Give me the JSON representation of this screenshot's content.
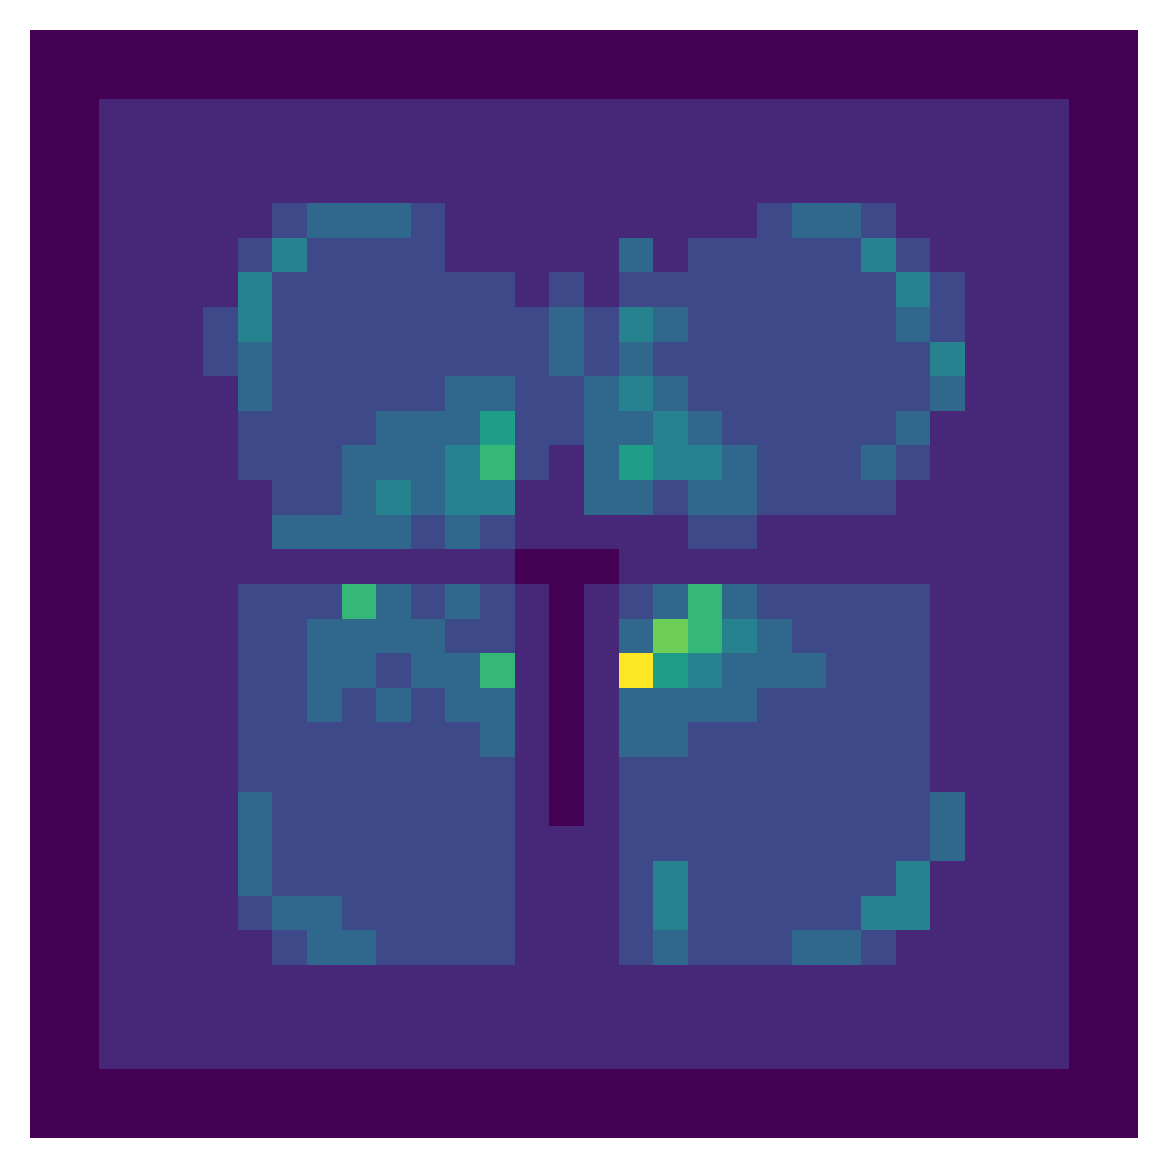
{
  "chart_data": {
    "type": "heatmap",
    "color": "viridis",
    "tick_labels": false,
    "color_range": [
      0,
      9
    ],
    "cells": [
      [
        0,
        0,
        0,
        0,
        0,
        0,
        0,
        0,
        0,
        0,
        0,
        0,
        0,
        0,
        0,
        0,
        0,
        0,
        0,
        0,
        0,
        0,
        0,
        0,
        0,
        0,
        0,
        0,
        0,
        0,
        0,
        0
      ],
      [
        0,
        0,
        0,
        0,
        0,
        0,
        0,
        0,
        0,
        0,
        0,
        0,
        0,
        0,
        0,
        0,
        0,
        0,
        0,
        0,
        0,
        0,
        0,
        0,
        0,
        0,
        0,
        0,
        0,
        0,
        0,
        0
      ],
      [
        0,
        0,
        1,
        1,
        1,
        1,
        1,
        1,
        1,
        1,
        1,
        1,
        1,
        1,
        1,
        1,
        1,
        1,
        1,
        1,
        1,
        1,
        1,
        1,
        1,
        1,
        1,
        1,
        1,
        1,
        0,
        0
      ],
      [
        0,
        0,
        1,
        1,
        1,
        1,
        1,
        1,
        1,
        1,
        1,
        1,
        1,
        1,
        1,
        1,
        1,
        1,
        1,
        1,
        1,
        1,
        1,
        1,
        1,
        1,
        1,
        1,
        1,
        1,
        0,
        0
      ],
      [
        0,
        0,
        1,
        1,
        1,
        1,
        1,
        1,
        1,
        1,
        1,
        1,
        1,
        1,
        1,
        1,
        1,
        1,
        1,
        1,
        1,
        1,
        1,
        1,
        1,
        1,
        1,
        1,
        1,
        1,
        0,
        0
      ],
      [
        0,
        0,
        1,
        1,
        1,
        1,
        1,
        2,
        3,
        3,
        3,
        2,
        1,
        1,
        1,
        1,
        1,
        1,
        1,
        1,
        1,
        2,
        3,
        3,
        2,
        1,
        1,
        1,
        1,
        1,
        0,
        0
      ],
      [
        0,
        0,
        1,
        1,
        1,
        1,
        2,
        4,
        2,
        2,
        2,
        2,
        1,
        1,
        1,
        1,
        1,
        3,
        1,
        2,
        2,
        2,
        2,
        2,
        4,
        2,
        1,
        1,
        1,
        1,
        0,
        0
      ],
      [
        0,
        0,
        1,
        1,
        1,
        1,
        4,
        2,
        2,
        2,
        2,
        2,
        2,
        2,
        1,
        2,
        1,
        2,
        2,
        2,
        2,
        2,
        2,
        2,
        2,
        4,
        2,
        1,
        1,
        1,
        0,
        0
      ],
      [
        0,
        0,
        1,
        1,
        1,
        2,
        4,
        2,
        2,
        2,
        2,
        2,
        2,
        2,
        2,
        3,
        2,
        4,
        3,
        2,
        2,
        2,
        2,
        2,
        2,
        3,
        2,
        1,
        1,
        1,
        0,
        0
      ],
      [
        0,
        0,
        1,
        1,
        1,
        2,
        3,
        2,
        2,
        2,
        2,
        2,
        2,
        2,
        2,
        3,
        2,
        3,
        2,
        2,
        2,
        2,
        2,
        2,
        2,
        2,
        4,
        1,
        1,
        1,
        0,
        0
      ],
      [
        0,
        0,
        1,
        1,
        1,
        1,
        3,
        2,
        2,
        2,
        2,
        2,
        3,
        3,
        2,
        2,
        3,
        4,
        3,
        2,
        2,
        2,
        2,
        2,
        2,
        2,
        3,
        1,
        1,
        1,
        0,
        0
      ],
      [
        0,
        0,
        1,
        1,
        1,
        1,
        2,
        2,
        2,
        2,
        3,
        3,
        3,
        5,
        2,
        2,
        3,
        3,
        4,
        3,
        2,
        2,
        2,
        2,
        2,
        3,
        1,
        1,
        1,
        1,
        0,
        0
      ],
      [
        0,
        0,
        1,
        1,
        1,
        1,
        2,
        2,
        2,
        3,
        3,
        3,
        4,
        6,
        2,
        1,
        3,
        5,
        4,
        4,
        3,
        2,
        2,
        2,
        3,
        2,
        1,
        1,
        1,
        1,
        0,
        0
      ],
      [
        0,
        0,
        1,
        1,
        1,
        1,
        1,
        2,
        2,
        3,
        4,
        3,
        4,
        4,
        1,
        1,
        3,
        3,
        2,
        3,
        3,
        2,
        2,
        2,
        2,
        1,
        1,
        1,
        1,
        1,
        0,
        0
      ],
      [
        0,
        0,
        1,
        1,
        1,
        1,
        1,
        3,
        3,
        3,
        3,
        2,
        3,
        2,
        1,
        1,
        1,
        1,
        1,
        2,
        2,
        1,
        1,
        1,
        1,
        1,
        1,
        1,
        1,
        1,
        0,
        0
      ],
      [
        0,
        0,
        1,
        1,
        1,
        1,
        1,
        1,
        1,
        1,
        1,
        1,
        1,
        1,
        0,
        0,
        0,
        1,
        1,
        1,
        1,
        1,
        1,
        1,
        1,
        1,
        1,
        1,
        1,
        1,
        0,
        0
      ],
      [
        0,
        0,
        1,
        1,
        1,
        1,
        2,
        2,
        2,
        6,
        3,
        2,
        3,
        2,
        1,
        0,
        1,
        2,
        3,
        6,
        3,
        2,
        2,
        2,
        2,
        2,
        1,
        1,
        1,
        1,
        0,
        0
      ],
      [
        0,
        0,
        1,
        1,
        1,
        1,
        2,
        2,
        3,
        3,
        3,
        3,
        2,
        2,
        1,
        0,
        1,
        3,
        7,
        6,
        4,
        3,
        2,
        2,
        2,
        2,
        1,
        1,
        1,
        1,
        0,
        0
      ],
      [
        0,
        0,
        1,
        1,
        1,
        1,
        2,
        2,
        3,
        3,
        2,
        3,
        3,
        6,
        1,
        0,
        1,
        9,
        5,
        4,
        3,
        3,
        3,
        2,
        2,
        2,
        1,
        1,
        1,
        1,
        0,
        0
      ],
      [
        0,
        0,
        1,
        1,
        1,
        1,
        2,
        2,
        3,
        2,
        3,
        2,
        3,
        3,
        1,
        0,
        1,
        3,
        3,
        3,
        3,
        2,
        2,
        2,
        2,
        2,
        1,
        1,
        1,
        1,
        0,
        0
      ],
      [
        0,
        0,
        1,
        1,
        1,
        1,
        2,
        2,
        2,
        2,
        2,
        2,
        2,
        3,
        1,
        0,
        1,
        3,
        3,
        2,
        2,
        2,
        2,
        2,
        2,
        2,
        1,
        1,
        1,
        1,
        0,
        0
      ],
      [
        0,
        0,
        1,
        1,
        1,
        1,
        2,
        2,
        2,
        2,
        2,
        2,
        2,
        2,
        1,
        0,
        1,
        2,
        2,
        2,
        2,
        2,
        2,
        2,
        2,
        2,
        1,
        1,
        1,
        1,
        0,
        0
      ],
      [
        0,
        0,
        1,
        1,
        1,
        1,
        3,
        2,
        2,
        2,
        2,
        2,
        2,
        2,
        1,
        0,
        1,
        2,
        2,
        2,
        2,
        2,
        2,
        2,
        2,
        2,
        3,
        1,
        1,
        1,
        0,
        0
      ],
      [
        0,
        0,
        1,
        1,
        1,
        1,
        3,
        2,
        2,
        2,
        2,
        2,
        2,
        2,
        1,
        1,
        1,
        2,
        2,
        2,
        2,
        2,
        2,
        2,
        2,
        2,
        3,
        1,
        1,
        1,
        0,
        0
      ],
      [
        0,
        0,
        1,
        1,
        1,
        1,
        3,
        2,
        2,
        2,
        2,
        2,
        2,
        2,
        1,
        1,
        1,
        2,
        4,
        2,
        2,
        2,
        2,
        2,
        2,
        4,
        1,
        1,
        1,
        1,
        0,
        0
      ],
      [
        0,
        0,
        1,
        1,
        1,
        1,
        2,
        3,
        3,
        2,
        2,
        2,
        2,
        2,
        1,
        1,
        1,
        2,
        4,
        2,
        2,
        2,
        2,
        2,
        4,
        4,
        1,
        1,
        1,
        1,
        0,
        0
      ],
      [
        0,
        0,
        1,
        1,
        1,
        1,
        1,
        2,
        3,
        3,
        2,
        2,
        2,
        2,
        1,
        1,
        1,
        2,
        3,
        2,
        2,
        2,
        3,
        3,
        2,
        1,
        1,
        1,
        1,
        1,
        0,
        0
      ],
      [
        0,
        0,
        1,
        1,
        1,
        1,
        1,
        1,
        1,
        1,
        1,
        1,
        1,
        1,
        1,
        1,
        1,
        1,
        1,
        1,
        1,
        1,
        1,
        1,
        1,
        1,
        1,
        1,
        1,
        1,
        0,
        0
      ],
      [
        0,
        0,
        1,
        1,
        1,
        1,
        1,
        1,
        1,
        1,
        1,
        1,
        1,
        1,
        1,
        1,
        1,
        1,
        1,
        1,
        1,
        1,
        1,
        1,
        1,
        1,
        1,
        1,
        1,
        1,
        0,
        0
      ],
      [
        0,
        0,
        1,
        1,
        1,
        1,
        1,
        1,
        1,
        1,
        1,
        1,
        1,
        1,
        1,
        1,
        1,
        1,
        1,
        1,
        1,
        1,
        1,
        1,
        1,
        1,
        1,
        1,
        1,
        1,
        0,
        0
      ],
      [
        0,
        0,
        0,
        0,
        0,
        0,
        0,
        0,
        0,
        0,
        0,
        0,
        0,
        0,
        0,
        0,
        0,
        0,
        0,
        0,
        0,
        0,
        0,
        0,
        0,
        0,
        0,
        0,
        0,
        0,
        0,
        0
      ],
      [
        0,
        0,
        0,
        0,
        0,
        0,
        0,
        0,
        0,
        0,
        0,
        0,
        0,
        0,
        0,
        0,
        0,
        0,
        0,
        0,
        0,
        0,
        0,
        0,
        0,
        0,
        0,
        0,
        0,
        0,
        0,
        0
      ]
    ]
  }
}
